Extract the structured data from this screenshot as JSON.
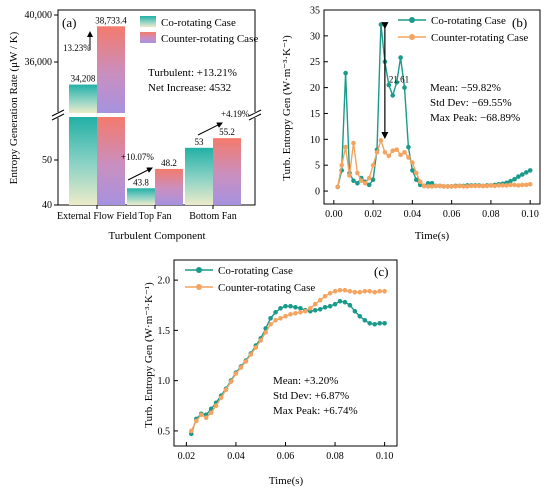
{
  "chart_data": [
    {
      "type": "bar",
      "panel_label": "(a)",
      "xlabel": "Turbulent Component",
      "ylabel": "Entropy Generation Rate (μW / K)",
      "categories": [
        "External Flow Field",
        "Top Fan",
        "Bottom Fan"
      ],
      "series": [
        {
          "name": "Co-rotating Case",
          "values": [
            34208,
            43.8,
            53
          ],
          "labels": [
            "34,208",
            "43.8",
            "53"
          ]
        },
        {
          "name": "Counter-rotating Case",
          "values": [
            38733.4,
            48.2,
            55.2
          ],
          "labels": [
            "38,733.4",
            "48.2",
            "55.2"
          ]
        }
      ],
      "axis_break": {
        "lower": [
          40,
          60
        ],
        "upper": [
          32000,
          40000
        ]
      },
      "yticks_lower": [
        "40",
        "50"
      ],
      "yticks_upper": [
        "36,000",
        "40,000"
      ],
      "changes": [
        "13.23%",
        "+10.07%",
        "+4.19%"
      ],
      "annotations": [
        "Turbulent: +13.21%",
        "Net Increase: 4532"
      ],
      "colors": {
        "co": "#2bb3a6",
        "counter": "#f06c6c"
      }
    },
    {
      "type": "line",
      "panel_label": "(b)",
      "xlabel": "Time(s)",
      "ylabel": "Turb. Entropy Gen (W·m⁻³·K⁻¹)",
      "xlim": [
        -0.005,
        0.105
      ],
      "ylim": [
        -2.5,
        35
      ],
      "xticks": [
        "0.00",
        "0.02",
        "0.04",
        "0.06",
        "0.08",
        "0.10"
      ],
      "yticks": [
        "0",
        "5",
        "10",
        "15",
        "20",
        "25",
        "30",
        "35"
      ],
      "x": [
        0.002,
        0.004,
        0.006,
        0.008,
        0.01,
        0.012,
        0.014,
        0.016,
        0.018,
        0.02,
        0.022,
        0.024,
        0.026,
        0.028,
        0.03,
        0.032,
        0.034,
        0.036,
        0.038,
        0.04,
        0.042,
        0.044,
        0.046,
        0.048,
        0.05,
        0.052,
        0.054,
        0.056,
        0.058,
        0.06,
        0.062,
        0.064,
        0.066,
        0.068,
        0.07,
        0.072,
        0.074,
        0.076,
        0.078,
        0.08,
        0.082,
        0.084,
        0.086,
        0.088,
        0.09,
        0.092,
        0.094,
        0.096,
        0.098,
        0.1
      ],
      "series": [
        {
          "name": "Co-rotating Case",
          "color": "#1a9a8a",
          "values": [
            0.8,
            4.0,
            22.8,
            3.5,
            2.0,
            1.5,
            2.5,
            1.8,
            1.2,
            2.2,
            8.0,
            32.2,
            25.0,
            20.5,
            18.5,
            21.0,
            25.8,
            20.0,
            8.5,
            4.0,
            2.2,
            1.2,
            1.0,
            1.5,
            1.5,
            1.0,
            1.0,
            0.9,
            0.9,
            0.9,
            1.0,
            1.0,
            1.0,
            1.1,
            1.1,
            1.1,
            1.1,
            1.0,
            1.1,
            1.1,
            1.2,
            1.3,
            1.4,
            1.6,
            1.9,
            2.3,
            2.8,
            3.2,
            3.6,
            4.0
          ]
        },
        {
          "name": "Counter-rotating Case",
          "color": "#f4a460",
          "values": [
            0.8,
            5.0,
            8.5,
            3.0,
            9.3,
            3.5,
            2.0,
            1.5,
            2.5,
            5.0,
            7.5,
            9.8,
            7.5,
            6.8,
            7.8,
            8.0,
            7.0,
            7.5,
            6.5,
            5.5,
            3.5,
            1.8,
            1.0,
            0.9,
            0.9,
            1.0,
            1.0,
            0.9,
            0.9,
            0.9,
            0.9,
            1.0,
            0.9,
            0.9,
            1.0,
            1.0,
            1.0,
            1.0,
            1.0,
            1.1,
            1.0,
            1.1,
            1.1,
            1.1,
            1.2,
            1.2,
            1.1,
            1.2,
            1.2,
            1.3
          ]
        }
      ],
      "peak_gap_label": "21.61",
      "stats": [
        "Mean: −59.82%",
        "Std Dev: −69.55%",
        "Max Peak: −68.89%"
      ]
    },
    {
      "type": "line",
      "panel_label": "(c)",
      "xlabel": "Time(s)",
      "ylabel": "Turb. Entropy Gen (W·m⁻³·K⁻¹)",
      "xlim": [
        0.015,
        0.105
      ],
      "ylim": [
        0.35,
        2.2
      ],
      "xticks": [
        "0.02",
        "0.04",
        "0.06",
        "0.08",
        "0.10"
      ],
      "yticks": [
        "0.5",
        "1.0",
        "1.5",
        "2.0"
      ],
      "x": [
        0.022,
        0.024,
        0.026,
        0.028,
        0.03,
        0.032,
        0.034,
        0.036,
        0.038,
        0.04,
        0.042,
        0.044,
        0.046,
        0.048,
        0.05,
        0.052,
        0.054,
        0.056,
        0.058,
        0.06,
        0.062,
        0.064,
        0.066,
        0.068,
        0.07,
        0.072,
        0.074,
        0.076,
        0.078,
        0.08,
        0.082,
        0.084,
        0.086,
        0.088,
        0.09,
        0.092,
        0.094,
        0.096,
        0.098,
        0.1
      ],
      "series": [
        {
          "name": "Co-rotating Case",
          "color": "#1a9a8a",
          "values": [
            0.47,
            0.62,
            0.67,
            0.66,
            0.72,
            0.78,
            0.85,
            0.92,
            1.0,
            1.08,
            1.14,
            1.2,
            1.27,
            1.35,
            1.42,
            1.52,
            1.62,
            1.68,
            1.72,
            1.74,
            1.74,
            1.73,
            1.72,
            1.7,
            1.69,
            1.7,
            1.71,
            1.73,
            1.74,
            1.76,
            1.79,
            1.78,
            1.75,
            1.69,
            1.64,
            1.6,
            1.57,
            1.56,
            1.57,
            1.57
          ]
        },
        {
          "name": "Counter-rotating Case",
          "color": "#f4a460",
          "values": [
            0.5,
            0.6,
            0.66,
            0.63,
            0.68,
            0.75,
            0.83,
            0.91,
            0.99,
            1.07,
            1.13,
            1.19,
            1.26,
            1.33,
            1.4,
            1.48,
            1.56,
            1.6,
            1.62,
            1.64,
            1.66,
            1.67,
            1.68,
            1.69,
            1.72,
            1.76,
            1.8,
            1.84,
            1.87,
            1.89,
            1.9,
            1.9,
            1.89,
            1.88,
            1.88,
            1.89,
            1.89,
            1.88,
            1.89,
            1.89
          ]
        }
      ],
      "stats": [
        "Mean: +3.20%",
        "Std Dev: +6.87%",
        "Max Peak: +6.74%"
      ]
    }
  ]
}
